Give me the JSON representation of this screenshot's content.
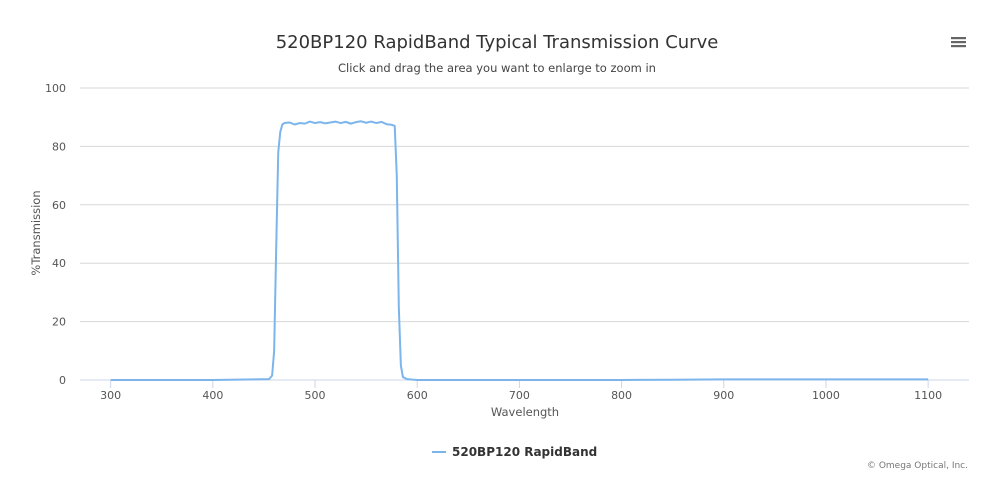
{
  "chart_data": {
    "type": "line",
    "title": "520BP120 RapidBand Typical Transmission Curve",
    "subtitle": "Click and drag the area you want to enlarge to zoom in",
    "xlabel": "Wavelength",
    "ylabel": "%Transmission",
    "xlim": [
      270,
      1140
    ],
    "ylim": [
      0,
      100
    ],
    "x_ticks": [
      300,
      400,
      500,
      600,
      700,
      800,
      900,
      1000,
      1100
    ],
    "y_ticks": [
      0,
      20,
      40,
      60,
      80,
      100
    ],
    "grid": "horizontal",
    "legend_position": "bottom-center",
    "series": [
      {
        "name": "520BP120 RapidBand",
        "color": "#7cb5ec",
        "x": [
          300,
          400,
          455,
          458,
          460,
          462,
          464,
          466,
          468,
          470,
          475,
          480,
          485,
          490,
          495,
          500,
          505,
          510,
          515,
          520,
          525,
          530,
          535,
          540,
          545,
          550,
          555,
          560,
          565,
          570,
          575,
          578,
          580,
          582,
          584,
          586,
          590,
          600,
          700,
          800,
          850,
          900,
          950,
          1000,
          1050,
          1100
        ],
        "y": [
          0,
          0,
          0.3,
          1.5,
          10,
          45,
          78,
          85,
          87.5,
          88,
          88.2,
          87.5,
          88,
          87.8,
          88.5,
          88,
          88.3,
          87.9,
          88.2,
          88.5,
          88,
          88.4,
          87.8,
          88.3,
          88.6,
          88.1,
          88.5,
          88,
          88.4,
          87.6,
          87.4,
          87,
          70,
          25,
          5,
          1,
          0.3,
          0,
          0,
          0,
          0.1,
          0.2,
          0.2,
          0.2,
          0.2,
          0.2
        ]
      }
    ]
  },
  "credits": "© Omega Optical, Inc.",
  "menu_icon": "hamburger-menu-icon"
}
